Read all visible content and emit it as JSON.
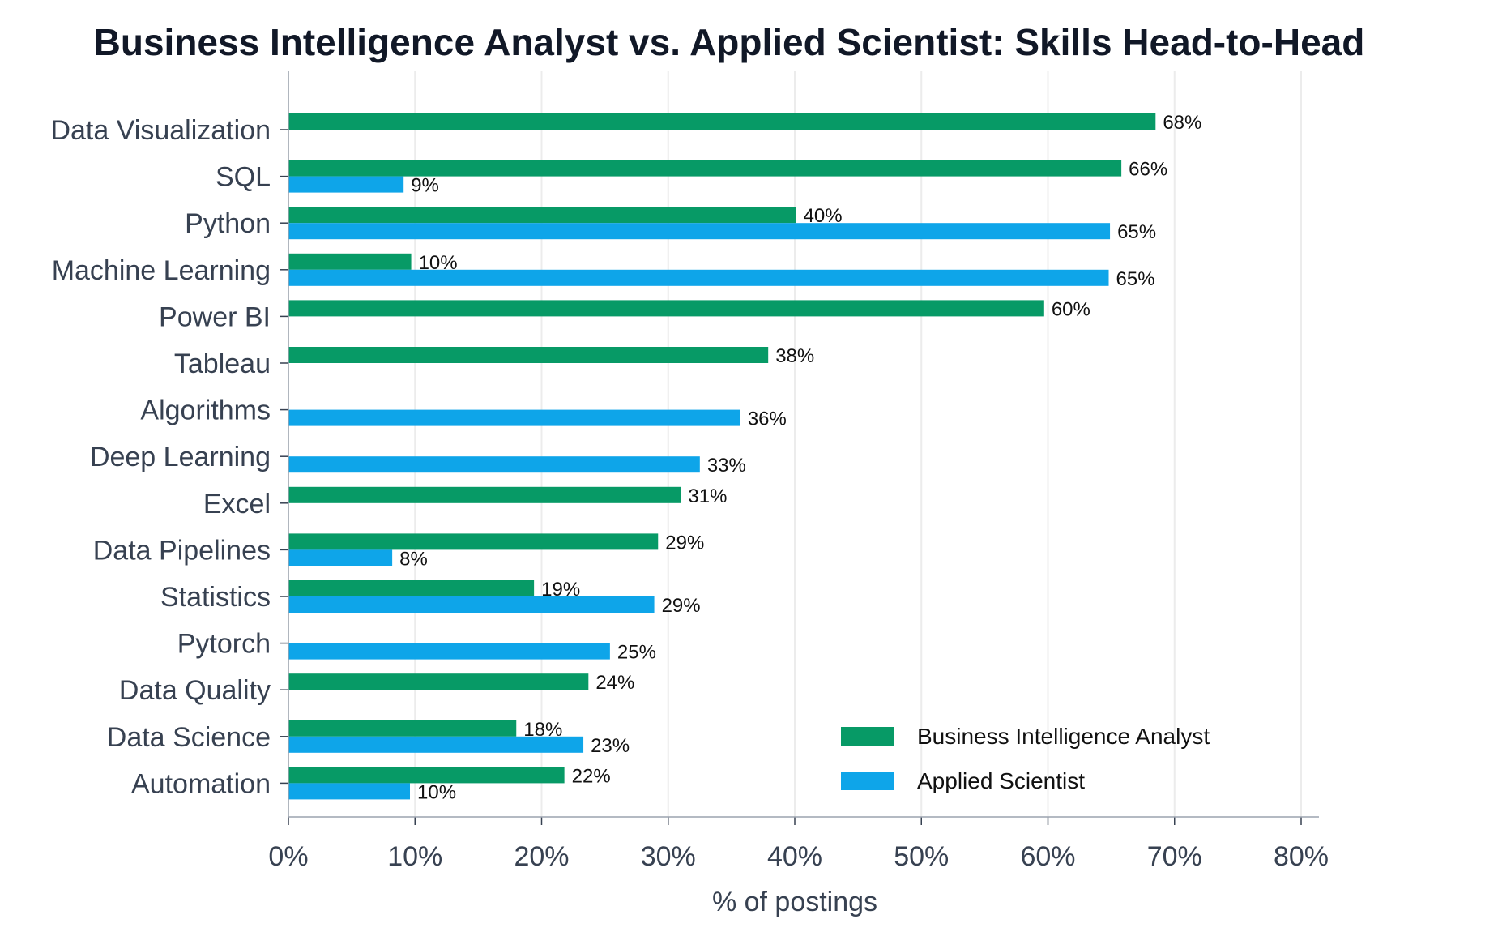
{
  "chart_data": {
    "type": "bar",
    "orientation": "horizontal",
    "title": "Business Intelligence Analyst vs. Applied Scientist: Skills Head-to-Head",
    "xlabel": "% of postings",
    "ylabel": "",
    "xlim": [
      0,
      80
    ],
    "x_ticks": [
      "0%",
      "10%",
      "20%",
      "30%",
      "40%",
      "50%",
      "60%",
      "70%",
      "80%"
    ],
    "grid": "vertical",
    "legend_position": "bottom-right",
    "categories": [
      "Data Visualization",
      "SQL",
      "Python",
      "Machine Learning",
      "Power BI",
      "Tableau",
      "Algorithms",
      "Deep Learning",
      "Excel",
      "Data Pipelines",
      "Statistics",
      "Pytorch",
      "Data Quality",
      "Data Science",
      "Automation"
    ],
    "series": [
      {
        "name": "Business Intelligence Analyst",
        "color": "#079a66",
        "values": [
          68.5,
          65.8,
          40.1,
          9.7,
          59.7,
          37.9,
          null,
          null,
          31.0,
          29.2,
          19.4,
          null,
          23.7,
          18.0,
          21.8
        ],
        "labels": [
          "68%",
          "66%",
          "40%",
          "10%",
          "60%",
          "38%",
          "",
          "",
          "31%",
          "29%",
          "19%",
          "",
          "24%",
          "18%",
          "22%"
        ]
      },
      {
        "name": "Applied Scientist",
        "color": "#0ea5e9",
        "values": [
          null,
          9.1,
          64.9,
          64.8,
          null,
          null,
          35.7,
          32.5,
          null,
          8.2,
          28.9,
          25.4,
          null,
          23.3,
          9.6
        ],
        "labels": [
          "",
          "9%",
          "65%",
          "65%",
          "",
          "",
          "36%",
          "33%",
          "",
          "8%",
          "29%",
          "25%",
          "",
          "23%",
          "10%"
        ]
      }
    ]
  }
}
